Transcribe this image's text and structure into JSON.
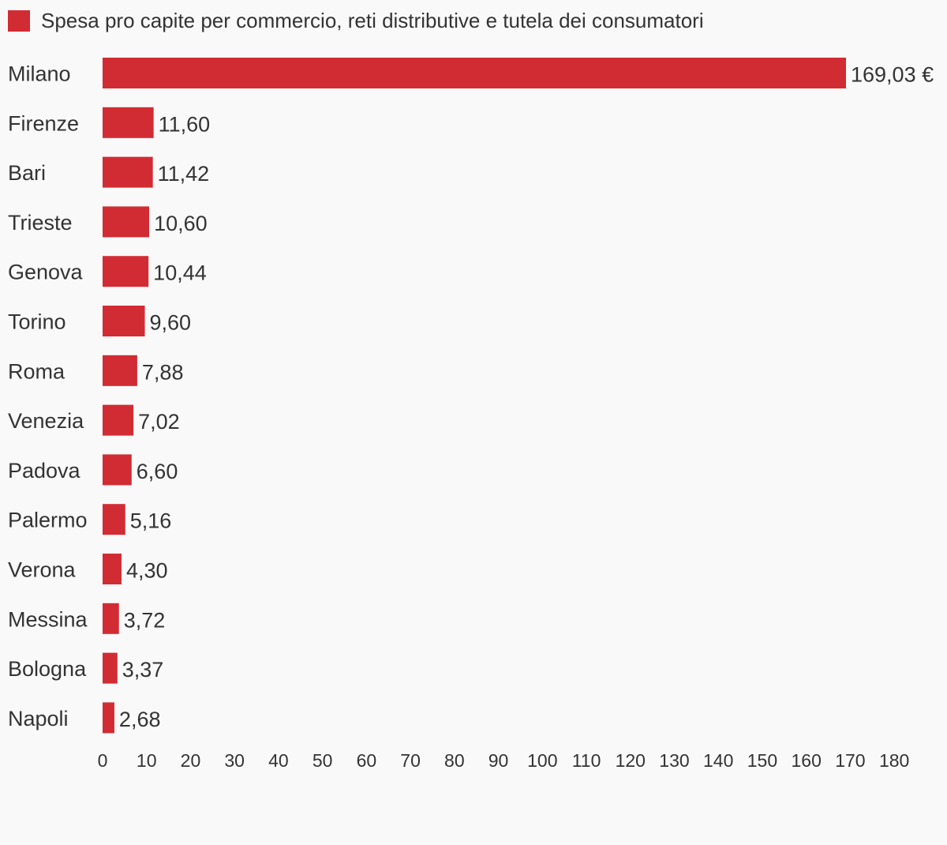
{
  "chart_data": {
    "type": "bar",
    "orientation": "horizontal",
    "series": [
      {
        "name": "Spesa pro capite per commercio, reti distributive e tutela dei consumatori",
        "color": "#d12c33",
        "values": [
          169.03,
          11.6,
          11.42,
          10.6,
          10.44,
          9.6,
          7.88,
          7.02,
          6.6,
          5.16,
          4.3,
          3.72,
          3.37,
          2.68
        ]
      }
    ],
    "categories": [
      "Milano",
      "Firenze",
      "Bari",
      "Trieste",
      "Genova",
      "Torino",
      "Roma",
      "Venezia",
      "Padova",
      "Palermo",
      "Verona",
      "Messina",
      "Bologna",
      "Napoli"
    ],
    "value_labels": [
      "169,03 €",
      "11,60",
      "11,42",
      "10,60",
      "10,44",
      "9,60",
      "7,88",
      "7,02",
      "6,60",
      "5,16",
      "4,30",
      "3,72",
      "3,37",
      "2,68"
    ],
    "x_ticks": [
      "0",
      "10",
      "20",
      "30",
      "40",
      "50",
      "60",
      "70",
      "80",
      "90",
      "100",
      "110",
      "120",
      "130",
      "140",
      "150",
      "160",
      "170",
      "180"
    ],
    "xlim": [
      0,
      180
    ],
    "legend_position": "top-left",
    "grid": false
  }
}
